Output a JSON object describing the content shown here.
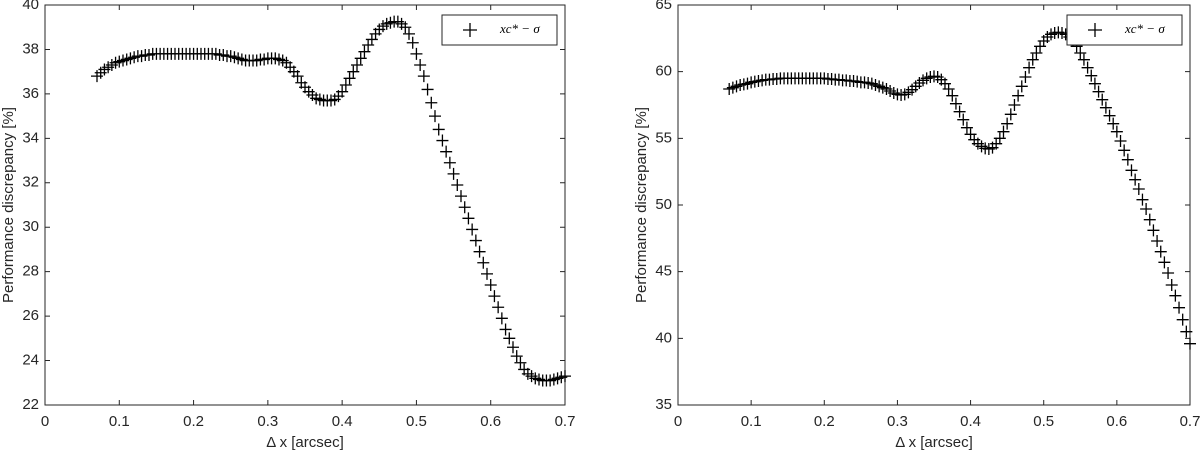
{
  "chart_data": [
    {
      "type": "scatter",
      "xlabel": "Δ x [arcsec]",
      "ylabel": "Performance discrepancy [%]",
      "xlim": [
        0,
        0.7
      ],
      "xticks": [
        0,
        0.1,
        0.2,
        0.3,
        0.4,
        0.5,
        0.6,
        0.7
      ],
      "ylim": [
        22,
        40
      ],
      "yticks": [
        22,
        24,
        26,
        28,
        30,
        32,
        34,
        36,
        38,
        40
      ],
      "legend": "northeast",
      "marker": "plus",
      "x": [
        0.07,
        0.075,
        0.08,
        0.085,
        0.09,
        0.095,
        0.1,
        0.105,
        0.11,
        0.115,
        0.12,
        0.125,
        0.13,
        0.135,
        0.14,
        0.145,
        0.15,
        0.155,
        0.16,
        0.165,
        0.17,
        0.175,
        0.18,
        0.185,
        0.19,
        0.195,
        0.2,
        0.205,
        0.21,
        0.215,
        0.22,
        0.225,
        0.23,
        0.235,
        0.24,
        0.245,
        0.25,
        0.255,
        0.26,
        0.265,
        0.27,
        0.275,
        0.28,
        0.285,
        0.29,
        0.295,
        0.3,
        0.305,
        0.31,
        0.315,
        0.32,
        0.325,
        0.33,
        0.335,
        0.34,
        0.345,
        0.35,
        0.355,
        0.36,
        0.365,
        0.37,
        0.375,
        0.38,
        0.385,
        0.39,
        0.395,
        0.4,
        0.405,
        0.41,
        0.415,
        0.42,
        0.425,
        0.43,
        0.435,
        0.44,
        0.445,
        0.45,
        0.455,
        0.46,
        0.465,
        0.47,
        0.475,
        0.48,
        0.485,
        0.49,
        0.495,
        0.5,
        0.505,
        0.51,
        0.515,
        0.52,
        0.525,
        0.53,
        0.535,
        0.54,
        0.545,
        0.55,
        0.555,
        0.56,
        0.565,
        0.57,
        0.575,
        0.58,
        0.585,
        0.59,
        0.595,
        0.6,
        0.605,
        0.61,
        0.615,
        0.62,
        0.625,
        0.63,
        0.635,
        0.64,
        0.645,
        0.65,
        0.655,
        0.66,
        0.665,
        0.67,
        0.675,
        0.68,
        0.685,
        0.69,
        0.695,
        0.7
      ],
      "series": [
        {
          "name": "xc* − σ",
          "color": "#000000",
          "values": [
            36.8,
            36.95,
            37.1,
            37.2,
            37.3,
            37.4,
            37.45,
            37.5,
            37.55,
            37.6,
            37.65,
            37.7,
            37.7,
            37.75,
            37.75,
            37.8,
            37.8,
            37.8,
            37.8,
            37.8,
            37.8,
            37.8,
            37.8,
            37.8,
            37.8,
            37.8,
            37.8,
            37.8,
            37.8,
            37.8,
            37.8,
            37.8,
            37.8,
            37.75,
            37.75,
            37.7,
            37.7,
            37.65,
            37.6,
            37.55,
            37.5,
            37.5,
            37.5,
            37.5,
            37.55,
            37.55,
            37.6,
            37.6,
            37.6,
            37.55,
            37.5,
            37.4,
            37.2,
            37.0,
            36.8,
            36.5,
            36.3,
            36.1,
            35.95,
            35.8,
            35.75,
            35.7,
            35.7,
            35.7,
            35.75,
            35.9,
            36.1,
            36.4,
            36.7,
            37.0,
            37.3,
            37.6,
            37.9,
            38.2,
            38.45,
            38.7,
            38.9,
            39.05,
            39.15,
            39.2,
            39.25,
            39.25,
            39.15,
            39.0,
            38.7,
            38.3,
            37.8,
            37.3,
            36.8,
            36.2,
            35.6,
            35.0,
            34.4,
            33.9,
            33.4,
            32.9,
            32.4,
            31.9,
            31.4,
            30.9,
            30.4,
            29.9,
            29.4,
            28.9,
            28.4,
            27.9,
            27.4,
            26.9,
            26.4,
            25.9,
            25.4,
            25.0,
            24.6,
            24.2,
            23.9,
            23.6,
            23.4,
            23.3,
            23.2,
            23.15,
            23.1,
            23.1,
            23.1,
            23.15,
            23.2,
            23.25,
            23.3
          ]
        }
      ]
    },
    {
      "type": "scatter",
      "xlabel": "Δ x [arcsec]",
      "ylabel": "Performance discrepancy [%]",
      "xlim": [
        0,
        0.7
      ],
      "xticks": [
        0,
        0.1,
        0.2,
        0.3,
        0.4,
        0.5,
        0.6,
        0.7
      ],
      "ylim": [
        35,
        65
      ],
      "yticks": [
        35,
        40,
        45,
        50,
        55,
        60,
        65
      ],
      "legend": "northeast",
      "marker": "plus",
      "x": [
        0.07,
        0.075,
        0.08,
        0.085,
        0.09,
        0.095,
        0.1,
        0.105,
        0.11,
        0.115,
        0.12,
        0.125,
        0.13,
        0.135,
        0.14,
        0.145,
        0.15,
        0.155,
        0.16,
        0.165,
        0.17,
        0.175,
        0.18,
        0.185,
        0.19,
        0.195,
        0.2,
        0.205,
        0.21,
        0.215,
        0.22,
        0.225,
        0.23,
        0.235,
        0.24,
        0.245,
        0.25,
        0.255,
        0.26,
        0.265,
        0.27,
        0.275,
        0.28,
        0.285,
        0.29,
        0.295,
        0.3,
        0.305,
        0.31,
        0.315,
        0.32,
        0.325,
        0.33,
        0.335,
        0.34,
        0.345,
        0.35,
        0.355,
        0.36,
        0.365,
        0.37,
        0.375,
        0.38,
        0.385,
        0.39,
        0.395,
        0.4,
        0.405,
        0.41,
        0.415,
        0.42,
        0.425,
        0.43,
        0.435,
        0.44,
        0.445,
        0.45,
        0.455,
        0.46,
        0.465,
        0.47,
        0.475,
        0.48,
        0.485,
        0.49,
        0.495,
        0.5,
        0.505,
        0.51,
        0.515,
        0.52,
        0.525,
        0.53,
        0.535,
        0.54,
        0.545,
        0.55,
        0.555,
        0.56,
        0.565,
        0.57,
        0.575,
        0.58,
        0.585,
        0.59,
        0.595,
        0.6,
        0.605,
        0.61,
        0.615,
        0.62,
        0.625,
        0.63,
        0.635,
        0.64,
        0.645,
        0.65,
        0.655,
        0.66,
        0.665,
        0.67,
        0.675,
        0.68,
        0.685,
        0.69,
        0.695,
        0.7
      ],
      "series": [
        {
          "name": "xc* − σ",
          "color": "#000000",
          "values": [
            58.7,
            58.8,
            58.9,
            59.0,
            59.05,
            59.1,
            59.2,
            59.25,
            59.3,
            59.35,
            59.4,
            59.4,
            59.45,
            59.45,
            59.5,
            59.5,
            59.5,
            59.5,
            59.5,
            59.5,
            59.5,
            59.5,
            59.5,
            59.5,
            59.5,
            59.5,
            59.5,
            59.45,
            59.45,
            59.4,
            59.4,
            59.35,
            59.35,
            59.3,
            59.3,
            59.25,
            59.2,
            59.2,
            59.15,
            59.1,
            59.0,
            58.9,
            58.8,
            58.7,
            58.55,
            58.4,
            58.3,
            58.25,
            58.3,
            58.45,
            58.65,
            58.9,
            59.15,
            59.35,
            59.5,
            59.6,
            59.65,
            59.6,
            59.4,
            59.1,
            58.7,
            58.2,
            57.6,
            57.0,
            56.4,
            55.8,
            55.3,
            54.9,
            54.6,
            54.4,
            54.25,
            54.2,
            54.3,
            54.6,
            55.0,
            55.5,
            56.1,
            56.8,
            57.5,
            58.2,
            58.9,
            59.6,
            60.3,
            60.9,
            61.4,
            61.9,
            62.3,
            62.6,
            62.8,
            62.9,
            62.95,
            62.9,
            62.8,
            62.6,
            62.3,
            61.9,
            61.4,
            60.9,
            60.3,
            59.7,
            59.1,
            58.5,
            57.9,
            57.3,
            56.7,
            56.1,
            55.5,
            54.8,
            54.1,
            53.4,
            52.6,
            51.9,
            51.2,
            50.4,
            49.7,
            48.9,
            48.1,
            47.3,
            46.5,
            45.7,
            44.9,
            44.0,
            43.2,
            42.3,
            41.4,
            40.5,
            39.6
          ]
        }
      ]
    }
  ]
}
